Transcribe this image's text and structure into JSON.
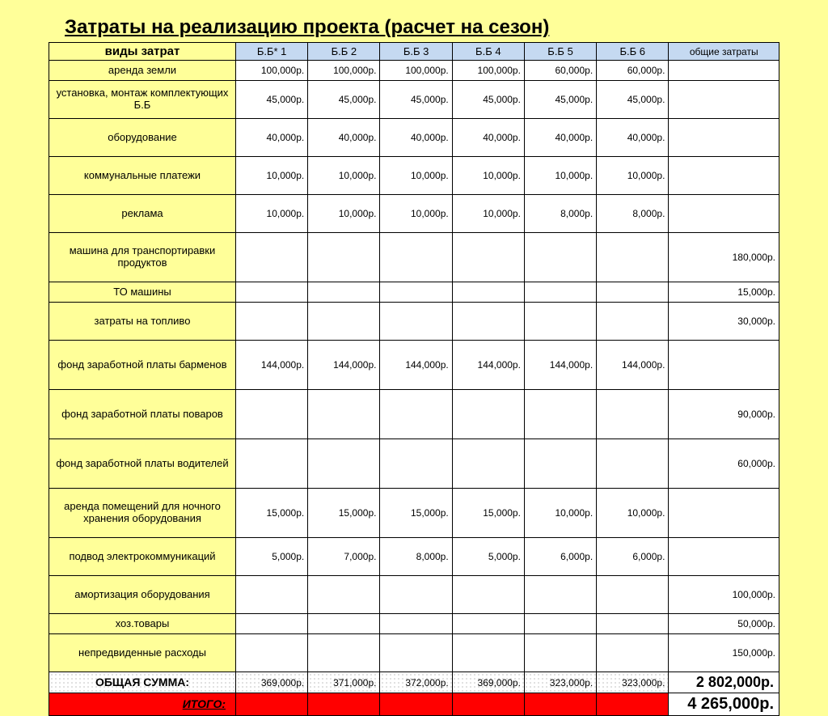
{
  "title": "Затраты на реализацию проекта (расчет на сезон)",
  "table": {
    "header": {
      "cost_types": "виды затрат",
      "cols": [
        "Б.Б* 1",
        "Б.Б 2",
        "Б.Б 3",
        "Б.Б 4",
        "Б.Б 5",
        "Б.Б 6"
      ],
      "total": "общие затраты"
    },
    "rows": [
      {
        "label": "аренда земли",
        "vals": [
          "100,000р.",
          "100,000р.",
          "100,000р.",
          "100,000р.",
          "60,000р.",
          "60,000р."
        ],
        "total": "",
        "h": "short"
      },
      {
        "label": "установка, монтаж комплектующих Б.Б",
        "vals": [
          "45,000р.",
          "45,000р.",
          "45,000р.",
          "45,000р.",
          "45,000р.",
          "45,000р."
        ],
        "total": "",
        "h": "tall"
      },
      {
        "label": "оборудование",
        "vals": [
          "40,000р.",
          "40,000р.",
          "40,000р.",
          "40,000р.",
          "40,000р.",
          "40,000р."
        ],
        "total": "",
        "h": "tall"
      },
      {
        "label": "коммунальные платежи",
        "vals": [
          "10,000р.",
          "10,000р.",
          "10,000р.",
          "10,000р.",
          "10,000р.",
          "10,000р."
        ],
        "total": "",
        "h": "tall"
      },
      {
        "label": "реклама",
        "vals": [
          "10,000р.",
          "10,000р.",
          "10,000р.",
          "10,000р.",
          "8,000р.",
          "8,000р."
        ],
        "total": "",
        "h": "tall"
      },
      {
        "label": "машина для транспортиравки продуктов",
        "vals": [
          "",
          "",
          "",
          "",
          "",
          ""
        ],
        "total": "180,000р.",
        "h": "tall3"
      },
      {
        "label": "ТО машины",
        "vals": [
          "",
          "",
          "",
          "",
          "",
          ""
        ],
        "total": "15,000р.",
        "h": "short"
      },
      {
        "label": "затраты на топливо",
        "vals": [
          "",
          "",
          "",
          "",
          "",
          ""
        ],
        "total": "30,000р.",
        "h": "tall"
      },
      {
        "label": "фонд заработной платы барменов",
        "vals": [
          "144,000р.",
          "144,000р.",
          "144,000р.",
          "144,000р.",
          "144,000р.",
          "144,000р."
        ],
        "total": "",
        "h": "tall3"
      },
      {
        "label": "фонд заработной платы поваров",
        "vals": [
          "",
          "",
          "",
          "",
          "",
          ""
        ],
        "total": "90,000р.",
        "h": "tall3"
      },
      {
        "label": "фонд заработной платы водителей",
        "vals": [
          "",
          "",
          "",
          "",
          "",
          ""
        ],
        "total": "60,000р.",
        "h": "tall3"
      },
      {
        "label": "аренда помещений для ночного хранения оборудования",
        "vals": [
          "15,000р.",
          "15,000р.",
          "15,000р.",
          "15,000р.",
          "10,000р.",
          "10,000р."
        ],
        "total": "",
        "h": "tall3"
      },
      {
        "label": "подвод электрокоммуникаций",
        "vals": [
          "5,000р.",
          "7,000р.",
          "8,000р.",
          "5,000р.",
          "6,000р.",
          "6,000р."
        ],
        "total": "",
        "h": "tall"
      },
      {
        "label": "амортизация оборудования",
        "vals": [
          "",
          "",
          "",
          "",
          "",
          ""
        ],
        "total": "100,000р.",
        "h": "tall"
      },
      {
        "label": "хоз.товары",
        "vals": [
          "",
          "",
          "",
          "",
          "",
          ""
        ],
        "total": "50,000р.",
        "h": "short"
      },
      {
        "label": "непредвиденные расходы",
        "vals": [
          "",
          "",
          "",
          "",
          "",
          ""
        ],
        "total": "150,000р.",
        "h": "tall"
      }
    ],
    "subtotal": {
      "label": "ОБЩАЯ СУММА:",
      "vals": [
        "369,000р.",
        "371,000р.",
        "372,000р.",
        "369,000р.",
        "323,000р.",
        "323,000р."
      ],
      "total": "2 802,000р."
    },
    "grand": {
      "label": "ИТОГО:",
      "total": "4 265,000р."
    }
  },
  "colors": {
    "page_bg": "#ffff99",
    "header_bg": "#c5d9f1",
    "label_bg": "#ffff99",
    "grand_bg": "#ff0000",
    "border": "#000000"
  }
}
